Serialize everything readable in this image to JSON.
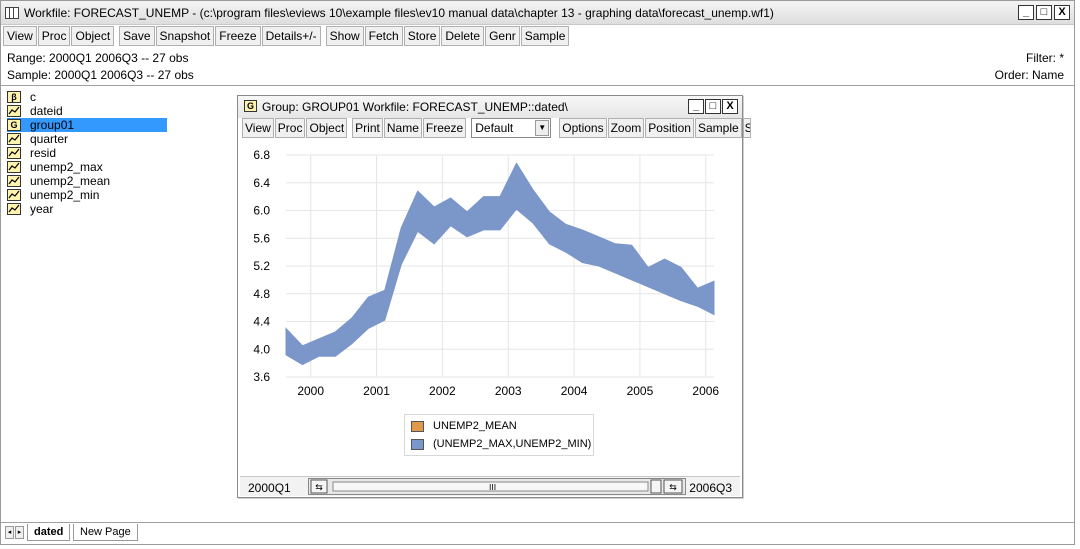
{
  "window": {
    "title": "Workfile: FORECAST_UNEMP - (c:\\program files\\eviews 10\\example files\\ev10 manual data\\chapter 13 - graphing data\\forecast_unemp.wf1)",
    "btn_min": "_",
    "btn_max": "□",
    "btn_close": "X"
  },
  "toolbar": [
    "View",
    "Proc",
    "Object",
    "Save",
    "Snapshot",
    "Freeze",
    "Details+/-",
    "Show",
    "Fetch",
    "Store",
    "Delete",
    "Genr",
    "Sample"
  ],
  "info": {
    "range": "Range:  2000Q1 2006Q3  --  27 obs",
    "sample": "Sample: 2000Q1 2006Q3  --  27 obs",
    "filter": "Filter: *",
    "order": "Order: Name"
  },
  "objects": [
    {
      "name": "c",
      "icon": "beta-icon",
      "glyph": "β"
    },
    {
      "name": "dateid",
      "icon": "series-icon",
      "glyph": ""
    },
    {
      "name": "group01",
      "icon": "group-icon",
      "glyph": "G"
    },
    {
      "name": "quarter",
      "icon": "series-icon",
      "glyph": ""
    },
    {
      "name": "resid",
      "icon": "series-icon",
      "glyph": ""
    },
    {
      "name": "unemp2_max",
      "icon": "series-icon",
      "glyph": ""
    },
    {
      "name": "unemp2_mean",
      "icon": "series-icon",
      "glyph": ""
    },
    {
      "name": "unemp2_min",
      "icon": "series-icon",
      "glyph": ""
    },
    {
      "name": "year",
      "icon": "series-icon",
      "glyph": ""
    }
  ],
  "group_window": {
    "icon_glyph": "G",
    "title": "Group: GROUP01   Workfile: FORECAST_UNEMP::dated\\",
    "toolbar": [
      "View",
      "Proc",
      "Object",
      "Print",
      "Name",
      "Freeze"
    ],
    "dropdown_value": "Default",
    "toolbar2": [
      "Options",
      "Zoom",
      "Position",
      "Sample",
      "S"
    ],
    "sample_start": "2000Q1",
    "sample_end": "2006Q3",
    "slider_grip": "III"
  },
  "chart_data": {
    "type": "area",
    "x_labels": [
      "2000",
      "2001",
      "2002",
      "2003",
      "2004",
      "2005",
      "2006"
    ],
    "y_ticks": [
      "3.6",
      "4.0",
      "4.4",
      "4.8",
      "5.2",
      "5.6",
      "6.0",
      "6.4",
      "6.8"
    ],
    "ylim": [
      3.6,
      6.8
    ],
    "quarters": 27,
    "series": [
      {
        "name": "UNEMP2_MEAN",
        "color": "#e0984a",
        "values": []
      },
      {
        "name": "(UNEMP2_MAX,UNEMP2_MIN)",
        "color": "#7b96c8",
        "max": [
          4.3,
          4.05,
          4.15,
          4.25,
          4.45,
          4.75,
          4.85,
          5.75,
          6.28,
          6.05,
          6.18,
          5.98,
          6.2,
          6.2,
          6.68,
          6.3,
          5.98,
          5.8,
          5.72,
          5.62,
          5.52,
          5.5,
          5.18,
          5.3,
          5.18,
          4.88,
          4.98
        ],
        "min": [
          3.92,
          3.78,
          3.9,
          3.9,
          4.08,
          4.3,
          4.42,
          5.22,
          5.7,
          5.52,
          5.78,
          5.62,
          5.72,
          5.72,
          6.02,
          5.82,
          5.52,
          5.4,
          5.25,
          5.2,
          5.1,
          5.0,
          4.9,
          4.8,
          4.7,
          4.62,
          4.5
        ]
      }
    ],
    "grid": true,
    "legend_position": "bottom"
  },
  "tabs": {
    "active": "dated",
    "new": "New Page",
    "prev": "◂",
    "next": "▸"
  }
}
